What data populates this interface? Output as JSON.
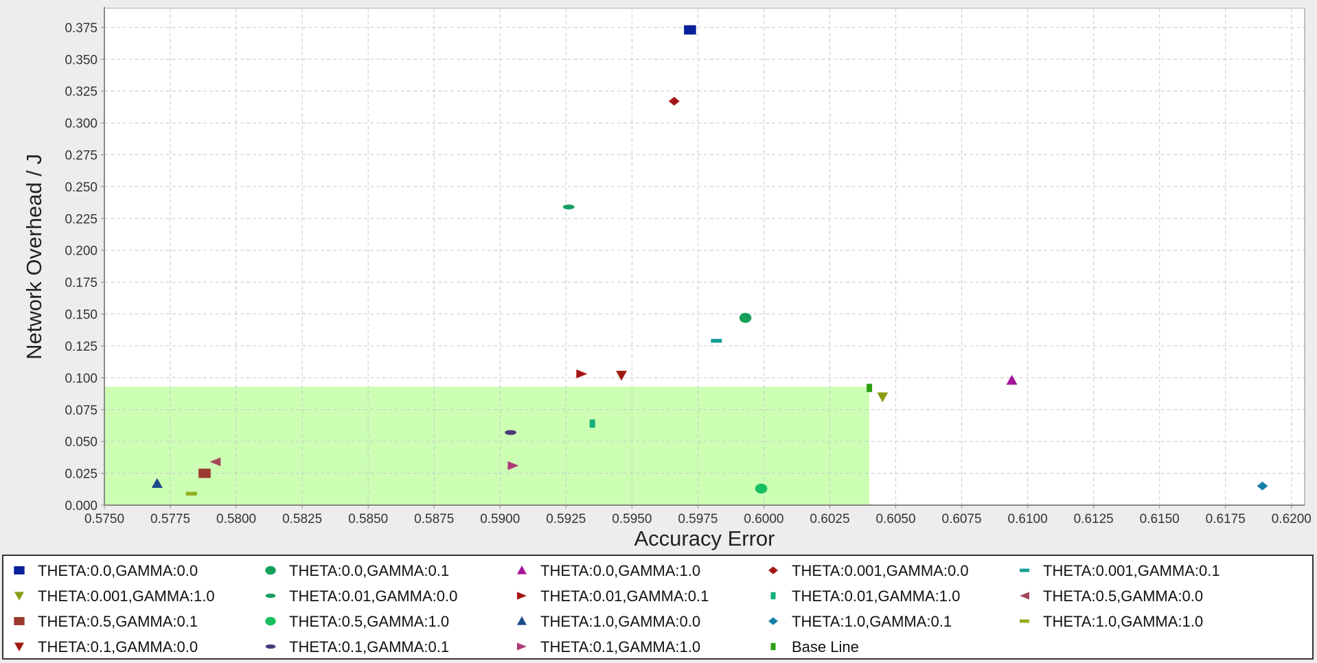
{
  "chart_data": {
    "type": "scatter",
    "title": "",
    "xlabel": "Accuracy Error",
    "ylabel": "Network Overhead / J",
    "xlim": [
      0.575,
      0.6205
    ],
    "ylim": [
      0.0,
      0.39
    ],
    "xticks": [
      "0.5750",
      "0.5775",
      "0.5800",
      "0.5825",
      "0.5850",
      "0.5875",
      "0.5900",
      "0.5925",
      "0.5950",
      "0.5975",
      "0.6000",
      "0.6025",
      "0.6050",
      "0.6075",
      "0.6100",
      "0.6125",
      "0.6150",
      "0.6175",
      "0.6200"
    ],
    "yticks": [
      "0.000",
      "0.025",
      "0.050",
      "0.075",
      "0.100",
      "0.125",
      "0.150",
      "0.175",
      "0.200",
      "0.225",
      "0.250",
      "0.275",
      "0.300",
      "0.325",
      "0.350",
      "0.375"
    ],
    "grid": true,
    "legend_position": "bottom",
    "highlight_region": {
      "x": [
        0.575,
        0.604
      ],
      "y": [
        0.0,
        0.093
      ],
      "color": "#ccffb3"
    },
    "series": [
      {
        "name": "THETA:0.0,GAMMA:0.0",
        "marker": "square",
        "color": "#0a1f9c",
        "points": [
          [
            0.5972,
            0.373
          ]
        ]
      },
      {
        "name": "THETA:0.0,GAMMA:0.1",
        "marker": "circle",
        "color": "#16a05a",
        "points": [
          [
            0.5993,
            0.147
          ]
        ]
      },
      {
        "name": "THETA:0.0,GAMMA:1.0",
        "marker": "triangle-up",
        "color": "#a3159a",
        "points": [
          [
            0.6094,
            0.098
          ]
        ]
      },
      {
        "name": "THETA:0.001,GAMMA:0.0",
        "marker": "diamond",
        "color": "#a31515",
        "points": [
          [
            0.5966,
            0.317
          ]
        ]
      },
      {
        "name": "THETA:0.001,GAMMA:0.1",
        "marker": "hbar",
        "color": "#179e96",
        "points": [
          [
            0.5982,
            0.129
          ]
        ]
      },
      {
        "name": "THETA:0.001,GAMMA:1.0",
        "marker": "triangle-down",
        "color": "#8a9c16",
        "points": [
          [
            0.6045,
            0.085
          ]
        ]
      },
      {
        "name": "THETA:0.01,GAMMA:0.0",
        "marker": "ellipse",
        "color": "#16a063",
        "points": [
          [
            0.5926,
            0.234
          ]
        ]
      },
      {
        "name": "THETA:0.01,GAMMA:0.1",
        "marker": "triangle-right",
        "color": "#a31515",
        "points": [
          [
            0.5931,
            0.103
          ]
        ]
      },
      {
        "name": "THETA:0.01,GAMMA:1.0",
        "marker": "vbar",
        "color": "#16b07a",
        "points": [
          [
            0.5935,
            0.064
          ]
        ]
      },
      {
        "name": "THETA:0.5,GAMMA:0.0",
        "marker": "triangle-left",
        "color": "#a34a5a",
        "points": [
          [
            0.5792,
            0.034
          ]
        ]
      },
      {
        "name": "THETA:0.5,GAMMA:0.1",
        "marker": "square",
        "color": "#9c3a30",
        "points": [
          [
            0.5788,
            0.025
          ]
        ]
      },
      {
        "name": "THETA:0.5,GAMMA:1.0",
        "marker": "circle",
        "color": "#16c060",
        "points": [
          [
            0.5999,
            0.013
          ]
        ]
      },
      {
        "name": "THETA:1.0,GAMMA:0.0",
        "marker": "triangle-up",
        "color": "#1a4a8a",
        "points": [
          [
            0.577,
            0.017
          ]
        ]
      },
      {
        "name": "THETA:1.0,GAMMA:0.1",
        "marker": "diamond",
        "color": "#1680a8",
        "points": [
          [
            0.6189,
            0.015
          ]
        ]
      },
      {
        "name": "THETA:1.0,GAMMA:1.0",
        "marker": "hbar",
        "color": "#90b020",
        "points": [
          [
            0.5783,
            0.009
          ]
        ]
      },
      {
        "name": "THETA:0.1,GAMMA:0.0",
        "marker": "triangle-down",
        "color": "#9c1a10",
        "points": [
          [
            0.5946,
            0.102
          ]
        ]
      },
      {
        "name": "THETA:0.1,GAMMA:0.1",
        "marker": "ellipse",
        "color": "#4a3a7a",
        "points": [
          [
            0.5904,
            0.057
          ]
        ]
      },
      {
        "name": "THETA:0.1,GAMMA:1.0",
        "marker": "triangle-right",
        "color": "#b03a7a",
        "points": [
          [
            0.5905,
            0.031
          ]
        ]
      },
      {
        "name": "Base Line",
        "marker": "vbar",
        "color": "#2aa010",
        "points": [
          [
            0.604,
            0.092
          ]
        ]
      }
    ]
  }
}
